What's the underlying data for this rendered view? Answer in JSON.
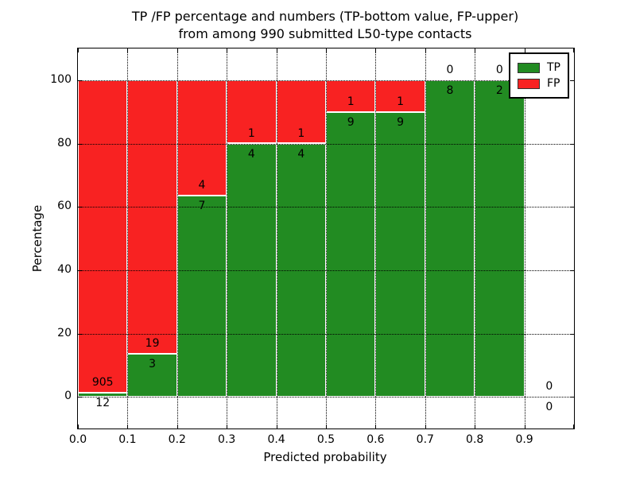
{
  "title": {
    "line1": "TP /FP percentage and numbers (TP-bottom value, FP-upper)",
    "line2": "from among 990 submitted L50-type contacts"
  },
  "chart_data": {
    "type": "bar",
    "subtype": "stacked-percentage-histogram",
    "title": "TP /FP percentage and numbers (TP-bottom value, FP-upper) from among 990 submitted L50-type contacts",
    "xlabel": "Predicted probability",
    "ylabel": "Percentage",
    "xlim": [
      0.0,
      1.0
    ],
    "ylim": [
      -10,
      110
    ],
    "grid": "dotted",
    "bin_edges": [
      0.0,
      0.1,
      0.2,
      0.3,
      0.4,
      0.5,
      0.6,
      0.7,
      0.8,
      0.9,
      1.0
    ],
    "xtick_labels": [
      "0.0",
      "0.1",
      "0.2",
      "0.3",
      "0.4",
      "0.5",
      "0.6",
      "0.7",
      "0.8",
      "0.9"
    ],
    "ytick_values": [
      0,
      20,
      40,
      60,
      80,
      100
    ],
    "series": [
      {
        "name": "TP",
        "color": "#228b22",
        "values": [
          12,
          3,
          7,
          4,
          4,
          9,
          9,
          8,
          2,
          0
        ]
      },
      {
        "name": "FP",
        "color": "#f82222",
        "values": [
          905,
          19,
          4,
          1,
          1,
          1,
          1,
          0,
          0,
          0
        ]
      }
    ],
    "tp_percent_by_bin": [
      1.31,
      13.64,
      63.64,
      80.0,
      80.0,
      90.0,
      90.0,
      100.0,
      100.0,
      null
    ],
    "total_submitted": 990,
    "annotation_rule": "TP count below green-bar top, FP count above it",
    "legend": {
      "position": "upper right",
      "entries": [
        {
          "label": "TP",
          "color": "#228b22"
        },
        {
          "label": "FP",
          "color": "#f82222"
        }
      ]
    }
  }
}
